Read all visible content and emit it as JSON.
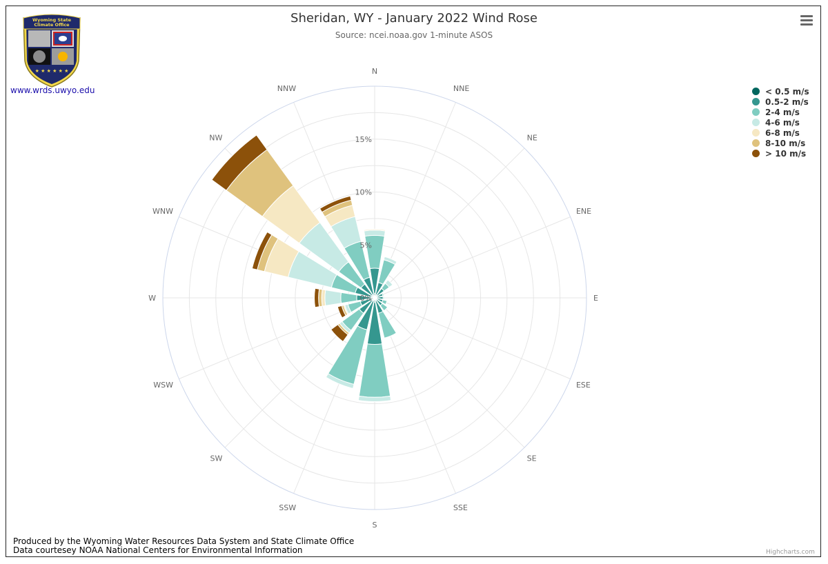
{
  "page": {
    "title": "Sheridan, WY - January 2022 Wind Rose",
    "subtitle": "Source: ncei.noaa.gov 1-minute ASOS",
    "site_link": "www.wrds.uwyo.edu",
    "logo_text_line1": "Wyoming State",
    "logo_text_line2": "Climate Office",
    "credits_line1": "Produced by the Wyoming Water Resources Data System and State Climate Office",
    "credits_line2": "Data courtesey NOAA National Centers for Environmental Information",
    "highcharts_credit": "Highcharts.com",
    "menu_icon": "hamburger-menu-icon"
  },
  "chart_data": {
    "type": "bar",
    "polar": true,
    "stacking": "normal",
    "title": "Sheridan, WY - January 2022 Wind Rose",
    "subtitle": "Source: ncei.noaa.gov 1-minute ASOS",
    "categories": [
      "N",
      "NNE",
      "NE",
      "ENE",
      "E",
      "ESE",
      "SE",
      "SSE",
      "S",
      "SSW",
      "SW",
      "WSW",
      "W",
      "WNW",
      "NW",
      "NNW"
    ],
    "y_tick_labels": [
      "0%",
      "5%",
      "10%",
      "15%"
    ],
    "ylim": [
      0,
      20
    ],
    "grid": true,
    "legend_position": "top-right",
    "series": [
      {
        "name": "< 0.5 m/s",
        "color": "#01665e",
        "values": [
          0.4,
          0.3,
          0.3,
          0.2,
          0.2,
          0.2,
          0.2,
          0.3,
          0.4,
          0.3,
          0.3,
          0.3,
          0.3,
          0.3,
          0.3,
          0.3
        ]
      },
      {
        "name": "0.5-2 m/s",
        "color": "#35978f",
        "values": [
          2.4,
          1.2,
          0.8,
          0.6,
          0.6,
          0.6,
          0.7,
          1.2,
          4.0,
          2.8,
          1.5,
          1.1,
          1.4,
          1.6,
          1.3,
          1.7
        ]
      },
      {
        "name": "2-4 m/s",
        "color": "#80cdc1",
        "values": [
          3.1,
          2.2,
          0.6,
          0.1,
          0.1,
          0.4,
          0.6,
          2.4,
          5.0,
          5.3,
          2.0,
          1.2,
          1.5,
          2.3,
          2.6,
          3.5
        ]
      },
      {
        "name": "4-6 m/s",
        "color": "#c7eae5",
        "values": [
          0.5,
          0.3,
          0.4,
          0,
          0,
          0,
          0,
          0,
          0.4,
          0.4,
          0.3,
          0.3,
          1.5,
          4.2,
          4.6,
          2.4
        ]
      },
      {
        "name": "6-8 m/s",
        "color": "#f6e8c3",
        "values": [
          0.1,
          0,
          0,
          0,
          0,
          0,
          0,
          0,
          0,
          0,
          0,
          0.1,
          0.3,
          2.3,
          4.3,
          1.1
        ]
      },
      {
        "name": "8-10 m/s",
        "color": "#dfc27d",
        "values": [
          0,
          0,
          0,
          0,
          0,
          0,
          0,
          0,
          0,
          0,
          0.2,
          0.2,
          0.3,
          0.7,
          4.2,
          0.5
        ]
      },
      {
        "name": "> 10 m/s",
        "color": "#8c510a",
        "values": [
          0,
          0,
          0,
          0,
          0,
          0,
          0,
          0,
          0,
          0,
          0.8,
          0.4,
          0.4,
          0.5,
          1.7,
          0.4
        ]
      }
    ]
  }
}
